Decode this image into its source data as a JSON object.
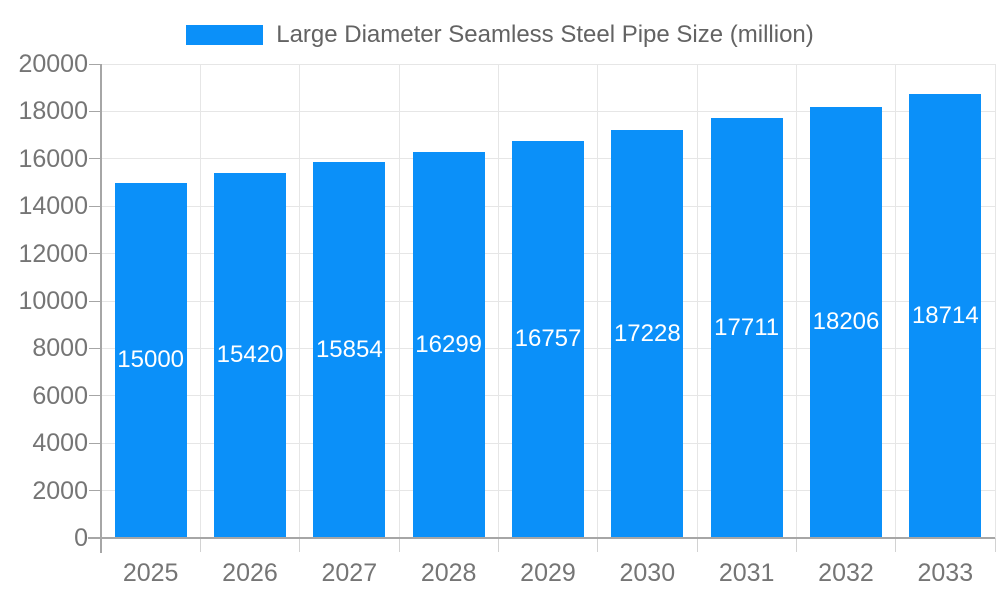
{
  "legend": {
    "label": "Large Diameter Seamless Steel Pipe Size (million)"
  },
  "colors": {
    "bar": "#0b90f9",
    "bar_label": "#ffffff",
    "axis_label": "#757575",
    "legend_label": "#636363",
    "axis_line": "#a6a6a6",
    "gridline": "#e6e6e6",
    "boundary_tick": "#d2d2d2",
    "background": "#ffffff"
  },
  "chart_data": {
    "type": "bar",
    "title": "Large Diameter Seamless Steel Pipe Size (million)",
    "categories": [
      "2025",
      "2026",
      "2027",
      "2028",
      "2029",
      "2030",
      "2031",
      "2032",
      "2033"
    ],
    "series": [
      {
        "name": "Large Diameter Seamless Steel Pipe Size (million)",
        "values": [
          15000,
          15420,
          15854,
          16299,
          16757,
          17228,
          17711,
          18206,
          18714
        ]
      }
    ],
    "xlabel": "",
    "ylabel": "",
    "ylim": [
      0,
      20000
    ],
    "y_ticks": [
      0,
      2000,
      4000,
      6000,
      8000,
      10000,
      12000,
      14000,
      16000,
      18000,
      20000
    ],
    "grid": true,
    "legend_position": "top-center",
    "value_labels": "inside-bar-centered"
  }
}
